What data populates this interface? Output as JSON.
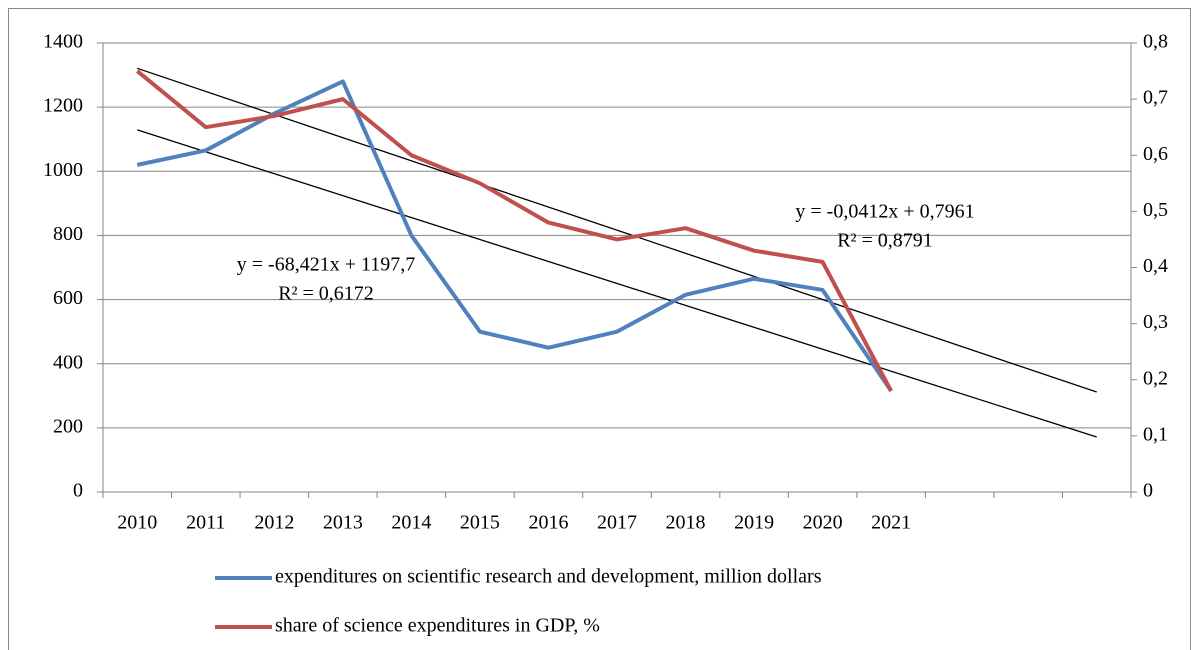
{
  "chart_data": {
    "type": "line",
    "categories": [
      "2010",
      "2011",
      "2012",
      "2013",
      "2014",
      "2015",
      "2016",
      "2017",
      "2018",
      "2019",
      "2020",
      "2021",
      null,
      null,
      null
    ],
    "series": [
      {
        "name": "expenditures on scientific research and development, million dollars",
        "color": "#4f81bd",
        "values": [
          1020,
          1065,
          1180,
          1280,
          800,
          500,
          450,
          500,
          615,
          665,
          630,
          315,
          null,
          null,
          null
        ]
      },
      {
        "name": "share of science expenditures in GDP, %",
        "color": "#c0504d",
        "axis": "y2",
        "values": [
          0.75,
          0.65,
          0.67,
          0.7,
          0.6,
          0.55,
          0.48,
          0.45,
          0.47,
          0.43,
          0.41,
          0.18,
          null,
          null,
          null
        ]
      }
    ],
    "trendlines": [
      {
        "slope": -68.421,
        "intercept": 1197.7,
        "label": "y = -68,421x + 1197,7",
        "r2_label": "R² = 0,6172",
        "color": "#000000"
      },
      {
        "slope": -0.0412,
        "intercept": 0.7961,
        "label": "y = -0,0412x + 0,7961",
        "r2_label": "R² = 0,8791",
        "color": "#000000",
        "axis": "y2"
      }
    ],
    "ylim": [
      0,
      1400
    ],
    "yticks": [
      0,
      200,
      400,
      600,
      800,
      1000,
      1200,
      1400
    ],
    "y2lim": [
      0,
      0.8
    ],
    "y2ticks": [
      0,
      {
        "value": 0.1,
        "label": "0,1"
      },
      {
        "value": 0.2,
        "label": "0,2"
      },
      {
        "value": 0.3,
        "label": "0,3"
      },
      {
        "value": 0.4,
        "label": "0,4"
      },
      {
        "value": 0.5,
        "label": "0,5"
      },
      {
        "value": 0.6,
        "label": "0,6"
      },
      {
        "value": 0.7,
        "label": "0,7"
      },
      {
        "value": 0.8,
        "label": "0,8"
      }
    ],
    "grid": true,
    "legend": "bottom"
  }
}
